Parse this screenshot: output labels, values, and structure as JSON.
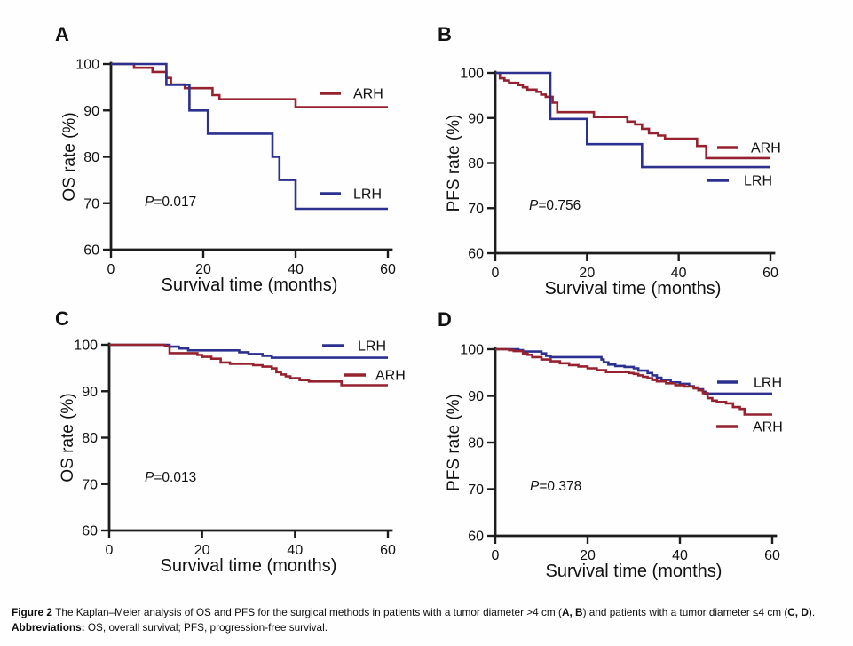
{
  "figure": {
    "caption": {
      "lines": [
        [
          {
            "t": "Figure 2 ",
            "b": true
          },
          {
            "t": "The Kaplan–Meier analysis of OS and PFS for the surgical methods in patients with a tumor diameter >4 cm (",
            "b": false
          },
          {
            "t": "A, B",
            "b": true
          },
          {
            "t": ") and patients with a tumor diameter ≤4 cm (",
            "b": false
          },
          {
            "t": "C, D",
            "b": true
          },
          {
            "t": ").",
            "b": false
          }
        ],
        [
          {
            "t": "Abbreviations: ",
            "b": true
          },
          {
            "t": "OS, overall survival; PFS, progression-free survival.",
            "b": false
          }
        ]
      ]
    },
    "colors": {
      "arh": "#96222f",
      "lrh": "#2c3190",
      "axis": "#1c1c1c",
      "text": "#111111"
    }
  },
  "chart_data": [
    {
      "panel_label": "A",
      "type": "line",
      "subtype": "kaplan-meier-step",
      "xlabel": "Survival time (months)",
      "ylabel": "OS rate (%)",
      "xlim": [
        0,
        60
      ],
      "ylim": [
        60,
        100
      ],
      "xticks": [
        0,
        20,
        40,
        60
      ],
      "yticks": [
        60,
        70,
        80,
        90,
        100
      ],
      "grid": false,
      "p_label": {
        "italic": "P",
        "rest": "=0.017"
      },
      "legend_order": [
        "ARH",
        "LRH"
      ],
      "series": [
        {
          "name": "ARH",
          "color": "#96222f",
          "points": [
            [
              0,
              100
            ],
            [
              5,
              99.2
            ],
            [
              9,
              98.3
            ],
            [
              12,
              97.0
            ],
            [
              13,
              95.6
            ],
            [
              16,
              94.8
            ],
            [
              22,
              93.3
            ],
            [
              23.5,
              92.4
            ],
            [
              40,
              90.7
            ],
            [
              60,
              90.7
            ]
          ]
        },
        {
          "name": "LRH",
          "color": "#2c3190",
          "points": [
            [
              0,
              100
            ],
            [
              12,
              95.5
            ],
            [
              17,
              90.0
            ],
            [
              21,
              85.0
            ],
            [
              35,
              80.0
            ],
            [
              36.5,
              75.0
            ],
            [
              40,
              68.8
            ],
            [
              60,
              68.8
            ]
          ]
        }
      ]
    },
    {
      "panel_label": "B",
      "type": "line",
      "subtype": "kaplan-meier-step",
      "xlabel": "Survival time (months)",
      "ylabel": "PFS rate (%)",
      "xlim": [
        0,
        60
      ],
      "ylim": [
        60,
        100
      ],
      "xticks": [
        0,
        20,
        40,
        60
      ],
      "yticks": [
        60,
        70,
        80,
        90,
        100
      ],
      "grid": false,
      "p_label": {
        "italic": "P",
        "rest": "=0.756"
      },
      "legend_order": [
        "ARH",
        "LRH"
      ],
      "series": [
        {
          "name": "ARH",
          "color": "#96222f",
          "points": [
            [
              0,
              100
            ],
            [
              1,
              98.8
            ],
            [
              2,
              98.3
            ],
            [
              3,
              97.8
            ],
            [
              5,
              97.3
            ],
            [
              6,
              96.8
            ],
            [
              7,
              96.3
            ],
            [
              9,
              95.8
            ],
            [
              10,
              95.2
            ],
            [
              11,
              94.7
            ],
            [
              12.5,
              93.4
            ],
            [
              13.5,
              91.3
            ],
            [
              21.5,
              90.2
            ],
            [
              28.8,
              89.2
            ],
            [
              30.5,
              88.6
            ],
            [
              32,
              87.6
            ],
            [
              33.5,
              86.6
            ],
            [
              35.5,
              86.1
            ],
            [
              37,
              85.4
            ],
            [
              44,
              83.8
            ],
            [
              46,
              81.1
            ],
            [
              60,
              81.1
            ]
          ]
        },
        {
          "name": "LRH",
          "color": "#2c3190",
          "points": [
            [
              0,
              100
            ],
            [
              12,
              89.8
            ],
            [
              20,
              84.2
            ],
            [
              32,
              79.1
            ],
            [
              60,
              79.1
            ]
          ]
        }
      ]
    },
    {
      "panel_label": "C",
      "type": "line",
      "subtype": "kaplan-meier-step",
      "xlabel": "Survival time (months)",
      "ylabel": "OS rate (%)",
      "xlim": [
        0,
        60
      ],
      "ylim": [
        60,
        100
      ],
      "xticks": [
        0,
        20,
        40,
        60
      ],
      "yticks": [
        60,
        70,
        80,
        90,
        100
      ],
      "grid": false,
      "p_label": {
        "italic": "P",
        "rest": "=0.013"
      },
      "legend_order": [
        "LRH",
        "ARH"
      ],
      "series": [
        {
          "name": "LRH",
          "color": "#2c3190",
          "points": [
            [
              0,
              100
            ],
            [
              13,
              99.6
            ],
            [
              15,
              99.2
            ],
            [
              17,
              98.8
            ],
            [
              28,
              98.4
            ],
            [
              30,
              98.0
            ],
            [
              33,
              97.6
            ],
            [
              35,
              97.2
            ],
            [
              60,
              97.2
            ]
          ]
        },
        {
          "name": "ARH",
          "color": "#96222f",
          "points": [
            [
              0,
              100
            ],
            [
              12,
              99.7
            ],
            [
              13,
              98.2
            ],
            [
              19,
              97.8
            ],
            [
              20,
              97.4
            ],
            [
              22,
              97.0
            ],
            [
              24,
              96.2
            ],
            [
              26,
              95.9
            ],
            [
              31,
              95.6
            ],
            [
              33,
              95.3
            ],
            [
              35,
              94.9
            ],
            [
              36,
              94.1
            ],
            [
              37,
              93.6
            ],
            [
              38,
              93.2
            ],
            [
              39,
              92.8
            ],
            [
              41,
              92.4
            ],
            [
              43,
              92.1
            ],
            [
              50,
              91.3
            ],
            [
              60,
              91.3
            ]
          ]
        }
      ]
    },
    {
      "panel_label": "D",
      "type": "line",
      "subtype": "kaplan-meier-step",
      "xlabel": "Survival time (months)",
      "ylabel": "PFS rate (%)",
      "xlim": [
        0,
        60
      ],
      "ylim": [
        60,
        100
      ],
      "xticks": [
        0,
        20,
        40,
        60
      ],
      "yticks": [
        60,
        70,
        80,
        90,
        100
      ],
      "grid": false,
      "p_label": {
        "italic": "P",
        "rest": "=0.378"
      },
      "legend_order": [
        "LRH",
        "ARH"
      ],
      "series": [
        {
          "name": "LRH",
          "color": "#2c3190",
          "points": [
            [
              0,
              100
            ],
            [
              5,
              99.8
            ],
            [
              6,
              99.5
            ],
            [
              10,
              99.1
            ],
            [
              11,
              98.6
            ],
            [
              12,
              98.3
            ],
            [
              23,
              97.8
            ],
            [
              23.5,
              97.2
            ],
            [
              24.5,
              96.7
            ],
            [
              26,
              96.4
            ],
            [
              28,
              96.2
            ],
            [
              30,
              95.9
            ],
            [
              31,
              95.4
            ],
            [
              33,
              94.9
            ],
            [
              34,
              94.4
            ],
            [
              35,
              93.9
            ],
            [
              36,
              93.4
            ],
            [
              38,
              92.9
            ],
            [
              40,
              92.6
            ],
            [
              42,
              92.1
            ],
            [
              43,
              91.8
            ],
            [
              44,
              91.4
            ],
            [
              45,
              90.9
            ],
            [
              45.5,
              90.5
            ],
            [
              60,
              90.5
            ]
          ]
        },
        {
          "name": "ARH",
          "color": "#96222f",
          "points": [
            [
              0,
              100
            ],
            [
              3,
              99.8
            ],
            [
              4,
              99.6
            ],
            [
              6,
              99.1
            ],
            [
              7,
              98.8
            ],
            [
              8,
              98.3
            ],
            [
              10,
              97.8
            ],
            [
              12,
              97.4
            ],
            [
              14,
              97.0
            ],
            [
              16,
              96.6
            ],
            [
              18,
              96.3
            ],
            [
              20,
              95.9
            ],
            [
              22,
              95.5
            ],
            [
              24,
              95.1
            ],
            [
              29,
              94.9
            ],
            [
              30,
              94.7
            ],
            [
              31,
              94.4
            ],
            [
              32,
              94.1
            ],
            [
              33,
              93.8
            ],
            [
              34,
              93.4
            ],
            [
              35,
              93.1
            ],
            [
              37,
              92.7
            ],
            [
              39,
              92.3
            ],
            [
              41,
              92.0
            ],
            [
              43,
              91.6
            ],
            [
              44,
              91.2
            ],
            [
              45,
              90.6
            ],
            [
              46,
              89.5
            ],
            [
              47,
              89.0
            ],
            [
              48,
              88.7
            ],
            [
              50,
              88.4
            ],
            [
              51.5,
              87.6
            ],
            [
              53,
              87.2
            ],
            [
              54,
              86.0
            ],
            [
              60,
              86.0
            ]
          ]
        }
      ]
    }
  ]
}
